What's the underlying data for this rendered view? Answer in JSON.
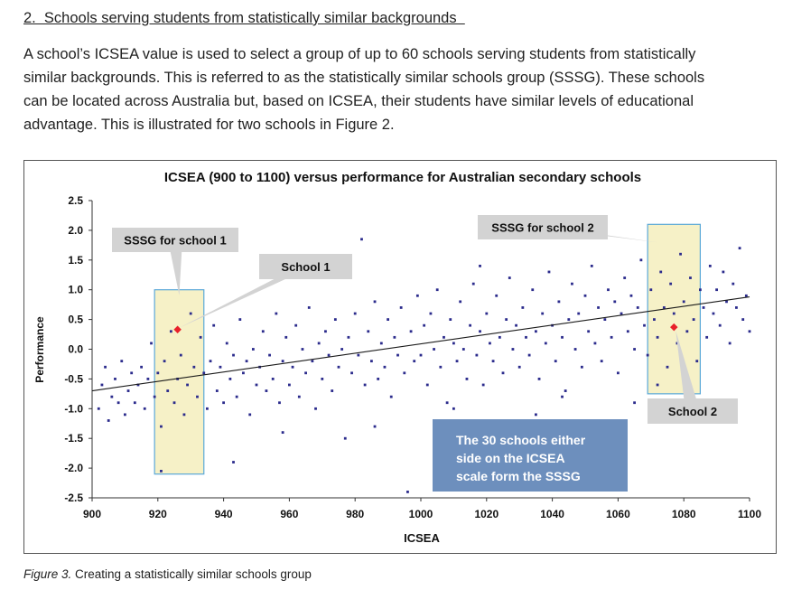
{
  "section": {
    "heading": "2.  Schools serving students from statistically similar backgrounds  ",
    "paragraph_lines": [
      "A school’s ICSEA value is used to select a group of up to 60 schools serving students from statistically",
      "similar backgrounds. This is referred to as the statistically similar schools group (SSSG). These schools",
      "can be located across Australia but, based on ICSEA, their students have similar levels of educational",
      "advantage.  This is illustrated for two schools in Figure 2."
    ]
  },
  "caption": {
    "label": "Figure 3.",
    "text": " Creating a statistically similar schools group"
  },
  "chart_data": {
    "type": "scatter",
    "title": "ICSEA (900 to 1100) versus performance for Australian secondary schools",
    "xlabel": "ICSEA",
    "ylabel": "Performance",
    "xlim": [
      900,
      1100
    ],
    "ylim": [
      -2.5,
      2.5
    ],
    "xticks": [
      "900",
      "920",
      "940",
      "960",
      "980",
      "1000",
      "1020",
      "1040",
      "1060",
      "1080",
      "1100"
    ],
    "yticks": [
      "2.5",
      "2.0",
      "1.5",
      "1.0",
      "0.5",
      "0.0",
      "-0.5",
      "-1.0",
      "-1.5",
      "-2.0",
      "-2.5"
    ],
    "grid": false,
    "trend_line": {
      "from": [
        900,
        -0.7
      ],
      "to": [
        1100,
        0.88
      ]
    },
    "point_color": "#2b2b8c",
    "highlight_color": "#e8202a",
    "highlights": [
      {
        "label": "School 1",
        "x": 926,
        "y": 0.33
      },
      {
        "label": "School 2",
        "x": 1077,
        "y": 0.37
      }
    ],
    "sssg_boxes": [
      {
        "label": "SSSG for school 1",
        "x_range": [
          919,
          934
        ],
        "y_range": [
          -2.1,
          1.0
        ]
      },
      {
        "label": "SSSG for school 2",
        "x_range": [
          1069,
          1085
        ],
        "y_range": [
          -0.75,
          2.1
        ]
      }
    ],
    "callout": "The 30 schools either side on the ICSEA scale form the SSSG",
    "callout_lines": [
      "The 30 schools either",
      "side on the ICSEA",
      "scale form the SSSG"
    ],
    "series": [
      {
        "name": "",
        "points": [
          [
            902,
            -1.0
          ],
          [
            903,
            -0.6
          ],
          [
            904,
            -0.3
          ],
          [
            905,
            -1.2
          ],
          [
            906,
            -0.8
          ],
          [
            907,
            -0.5
          ],
          [
            908,
            -0.9
          ],
          [
            909,
            -0.2
          ],
          [
            910,
            -1.1
          ],
          [
            911,
            -0.7
          ],
          [
            912,
            -0.4
          ],
          [
            913,
            -0.9
          ],
          [
            914,
            -0.6
          ],
          [
            915,
            -0.3
          ],
          [
            916,
            -1.0
          ],
          [
            917,
            -0.5
          ],
          [
            918,
            0.1
          ],
          [
            919,
            -0.8
          ],
          [
            920,
            -0.4
          ],
          [
            921,
            -1.3
          ],
          [
            922,
            -0.2
          ],
          [
            923,
            -0.7
          ],
          [
            924,
            0.3
          ],
          [
            925,
            -0.9
          ],
          [
            926,
            -0.5
          ],
          [
            927,
            -0.1
          ],
          [
            928,
            -1.1
          ],
          [
            929,
            -0.6
          ],
          [
            930,
            0.6
          ],
          [
            931,
            -0.3
          ],
          [
            932,
            -0.8
          ],
          [
            933,
            0.2
          ],
          [
            934,
            -0.4
          ],
          [
            935,
            -1.0
          ],
          [
            936,
            -0.2
          ],
          [
            937,
            0.4
          ],
          [
            938,
            -0.7
          ],
          [
            939,
            -0.3
          ],
          [
            940,
            -0.9
          ],
          [
            941,
            0.1
          ],
          [
            942,
            -0.5
          ],
          [
            943,
            -0.1
          ],
          [
            944,
            -0.8
          ],
          [
            945,
            0.5
          ],
          [
            946,
            -0.4
          ],
          [
            947,
            -0.2
          ],
          [
            948,
            -1.1
          ],
          [
            949,
            0.0
          ],
          [
            950,
            -0.6
          ],
          [
            951,
            -0.3
          ],
          [
            952,
            0.3
          ],
          [
            953,
            -0.7
          ],
          [
            954,
            -0.1
          ],
          [
            955,
            -0.5
          ],
          [
            956,
            0.6
          ],
          [
            957,
            -0.9
          ],
          [
            958,
            -0.2
          ],
          [
            959,
            0.2
          ],
          [
            960,
            -0.6
          ],
          [
            961,
            -0.3
          ],
          [
            962,
            0.4
          ],
          [
            963,
            -0.8
          ],
          [
            964,
            0.0
          ],
          [
            965,
            -0.4
          ],
          [
            966,
            0.7
          ],
          [
            967,
            -0.2
          ],
          [
            968,
            -1.0
          ],
          [
            969,
            0.1
          ],
          [
            970,
            -0.5
          ],
          [
            971,
            0.3
          ],
          [
            972,
            -0.1
          ],
          [
            973,
            -0.7
          ],
          [
            974,
            0.5
          ],
          [
            975,
            -0.3
          ],
          [
            976,
            0.0
          ],
          [
            977,
            -1.5
          ],
          [
            978,
            0.2
          ],
          [
            979,
            -0.4
          ],
          [
            980,
            0.6
          ],
          [
            981,
            -0.1
          ],
          [
            982,
            1.85
          ],
          [
            983,
            -0.6
          ],
          [
            984,
            0.3
          ],
          [
            985,
            -0.2
          ],
          [
            986,
            0.8
          ],
          [
            987,
            -0.5
          ],
          [
            988,
            0.1
          ],
          [
            989,
            -0.3
          ],
          [
            990,
            0.5
          ],
          [
            991,
            -0.8
          ],
          [
            992,
            0.2
          ],
          [
            993,
            -0.1
          ],
          [
            994,
            0.7
          ],
          [
            995,
            -0.4
          ],
          [
            996,
            -2.4
          ],
          [
            997,
            0.3
          ],
          [
            998,
            -0.2
          ],
          [
            999,
            0.9
          ],
          [
            1000,
            -0.1
          ],
          [
            1001,
            0.4
          ],
          [
            1002,
            -0.6
          ],
          [
            1003,
            0.6
          ],
          [
            1004,
            0.0
          ],
          [
            1005,
            1.0
          ],
          [
            1006,
            -0.3
          ],
          [
            1007,
            0.2
          ],
          [
            1008,
            -0.9
          ],
          [
            1009,
            0.5
          ],
          [
            1010,
            0.1
          ],
          [
            1011,
            -0.2
          ],
          [
            1012,
            0.8
          ],
          [
            1013,
            0.0
          ],
          [
            1014,
            -0.5
          ],
          [
            1015,
            0.4
          ],
          [
            1016,
            1.1
          ],
          [
            1017,
            -0.1
          ],
          [
            1018,
            0.3
          ],
          [
            1019,
            -0.6
          ],
          [
            1020,
            0.6
          ],
          [
            1021,
            0.1
          ],
          [
            1022,
            -0.2
          ],
          [
            1023,
            0.9
          ],
          [
            1024,
            0.2
          ],
          [
            1025,
            -0.4
          ],
          [
            1026,
            0.5
          ],
          [
            1027,
            1.2
          ],
          [
            1028,
            0.0
          ],
          [
            1029,
            0.4
          ],
          [
            1030,
            -0.3
          ],
          [
            1031,
            0.7
          ],
          [
            1032,
            0.2
          ],
          [
            1033,
            -0.1
          ],
          [
            1034,
            1.0
          ],
          [
            1035,
            0.3
          ],
          [
            1036,
            -0.5
          ],
          [
            1037,
            0.6
          ],
          [
            1038,
            0.1
          ],
          [
            1039,
            1.3
          ],
          [
            1040,
            0.4
          ],
          [
            1041,
            -0.2
          ],
          [
            1042,
            0.8
          ],
          [
            1043,
            0.2
          ],
          [
            1044,
            -0.7
          ],
          [
            1045,
            0.5
          ],
          [
            1046,
            1.1
          ],
          [
            1047,
            0.0
          ],
          [
            1048,
            0.6
          ],
          [
            1049,
            -0.3
          ],
          [
            1050,
            0.9
          ],
          [
            1051,
            0.3
          ],
          [
            1052,
            1.4
          ],
          [
            1053,
            0.1
          ],
          [
            1054,
            0.7
          ],
          [
            1055,
            -0.2
          ],
          [
            1056,
            0.5
          ],
          [
            1057,
            1.0
          ],
          [
            1058,
            0.2
          ],
          [
            1059,
            0.8
          ],
          [
            1060,
            -0.4
          ],
          [
            1061,
            0.6
          ],
          [
            1062,
            1.2
          ],
          [
            1063,
            0.3
          ],
          [
            1064,
            0.9
          ],
          [
            1065,
            0.0
          ],
          [
            1066,
            0.7
          ],
          [
            1067,
            1.5
          ],
          [
            1068,
            0.4
          ],
          [
            1069,
            -0.1
          ],
          [
            1070,
            1.0
          ],
          [
            1071,
            0.5
          ],
          [
            1072,
            0.2
          ],
          [
            1073,
            1.3
          ],
          [
            1074,
            0.7
          ],
          [
            1075,
            -0.3
          ],
          [
            1076,
            1.1
          ],
          [
            1077,
            0.6
          ],
          [
            1078,
            0.1
          ],
          [
            1079,
            1.6
          ],
          [
            1080,
            0.8
          ],
          [
            1081,
            0.3
          ],
          [
            1082,
            1.2
          ],
          [
            1083,
            0.5
          ],
          [
            1084,
            -0.2
          ],
          [
            1085,
            1.0
          ],
          [
            1086,
            0.7
          ],
          [
            1087,
            0.2
          ],
          [
            1088,
            1.4
          ],
          [
            1089,
            0.6
          ],
          [
            1090,
            1.0
          ],
          [
            1091,
            0.4
          ],
          [
            1092,
            1.3
          ],
          [
            1093,
            0.8
          ],
          [
            1094,
            0.1
          ],
          [
            1095,
            1.1
          ],
          [
            1096,
            0.7
          ],
          [
            1097,
            1.7
          ],
          [
            1098,
            0.5
          ],
          [
            1099,
            0.9
          ],
          [
            1100,
            0.3
          ],
          [
            1014,
            -1.3
          ],
          [
            1065,
            -0.9
          ],
          [
            1010,
            -1.0
          ],
          [
            1035,
            -1.1
          ],
          [
            1072,
            -0.6
          ],
          [
            943,
            -1.9
          ],
          [
            921,
            -2.05
          ],
          [
            958,
            -1.4
          ],
          [
            986,
            -1.3
          ],
          [
            1043,
            -0.8
          ],
          [
            1018,
            1.4
          ]
        ]
      }
    ]
  }
}
